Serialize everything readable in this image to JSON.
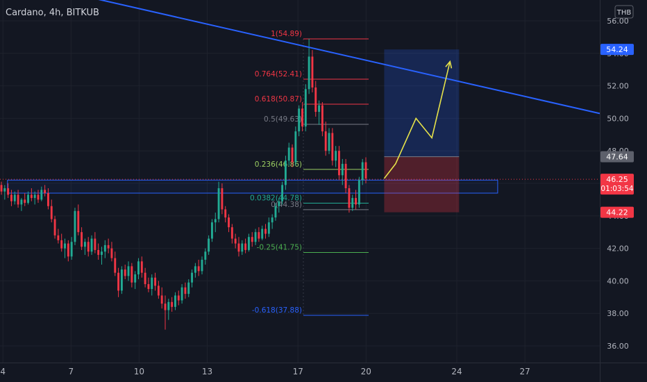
{
  "header": {
    "symbol_line": "Cardano, 4h, BITKUB"
  },
  "currency_badge": "THB",
  "chart_data": {
    "type": "candlestick",
    "title": "Cardano, 4h, BITKUB",
    "ylim": [
      35.2,
      57.0
    ],
    "y_ticks": [
      "56.00",
      "54.00",
      "52.00",
      "50.00",
      "48.00",
      "46.00",
      "44.00",
      "42.00",
      "40.00",
      "38.00",
      "36.00"
    ],
    "x_ticks": [
      {
        "label": "4",
        "day": 4
      },
      {
        "label": "7",
        "day": 7
      },
      {
        "label": "10",
        "day": 10
      },
      {
        "label": "13",
        "day": 13
      },
      {
        "label": "17",
        "day": 17
      },
      {
        "label": "20",
        "day": 20
      },
      {
        "label": "24",
        "day": 24
      },
      {
        "label": "27",
        "day": 27
      }
    ],
    "day_range": [
      3.87,
      30.3
    ],
    "candles": [
      [
        45.9,
        46.1,
        45.3,
        45.5
      ],
      [
        45.5,
        45.9,
        45.0,
        45.7
      ],
      [
        45.7,
        46.0,
        45.1,
        45.3
      ],
      [
        45.3,
        45.6,
        44.6,
        44.9
      ],
      [
        44.9,
        45.5,
        44.7,
        45.3
      ],
      [
        45.3,
        45.6,
        44.5,
        44.7
      ],
      [
        44.7,
        45.1,
        44.3,
        45.0
      ],
      [
        45.0,
        45.4,
        44.6,
        44.8
      ],
      [
        44.8,
        45.5,
        44.7,
        45.3
      ],
      [
        45.3,
        45.7,
        44.9,
        45.1
      ],
      [
        45.1,
        45.5,
        44.7,
        45.3
      ],
      [
        45.3,
        45.6,
        44.8,
        45.0
      ],
      [
        45.0,
        45.8,
        44.9,
        45.6
      ],
      [
        45.6,
        45.9,
        45.2,
        45.4
      ],
      [
        45.4,
        45.7,
        44.4,
        44.6
      ],
      [
        44.6,
        45.0,
        43.6,
        43.8
      ],
      [
        43.8,
        44.0,
        42.6,
        42.8
      ],
      [
        42.8,
        43.2,
        42.3,
        42.5
      ],
      [
        42.5,
        42.9,
        41.8,
        42.0
      ],
      [
        42.0,
        42.6,
        41.4,
        42.3
      ],
      [
        42.3,
        42.5,
        41.2,
        41.5
      ],
      [
        41.5,
        42.7,
        41.3,
        42.4
      ],
      [
        42.4,
        44.5,
        42.2,
        44.3
      ],
      [
        44.3,
        44.7,
        42.8,
        43.0
      ],
      [
        43.0,
        43.3,
        41.9,
        42.1
      ],
      [
        42.1,
        42.6,
        41.6,
        42.4
      ],
      [
        42.4,
        42.7,
        41.5,
        41.8
      ],
      [
        41.8,
        42.8,
        41.6,
        42.6
      ],
      [
        42.6,
        43.0,
        41.7,
        41.9
      ],
      [
        41.9,
        42.3,
        41.3,
        41.6
      ],
      [
        41.6,
        42.1,
        41.0,
        41.8
      ],
      [
        41.8,
        42.5,
        41.4,
        42.2
      ],
      [
        42.2,
        42.6,
        41.7,
        42.0
      ],
      [
        42.0,
        42.4,
        41.2,
        41.4
      ],
      [
        41.4,
        41.8,
        40.3,
        40.5
      ],
      [
        40.5,
        40.8,
        39.0,
        39.4
      ],
      [
        39.4,
        40.9,
        39.2,
        40.7
      ],
      [
        40.7,
        41.0,
        40.1,
        40.3
      ],
      [
        40.3,
        41.2,
        40.0,
        40.9
      ],
      [
        40.9,
        41.1,
        39.6,
        39.9
      ],
      [
        39.9,
        40.6,
        39.5,
        40.4
      ],
      [
        40.4,
        41.4,
        40.1,
        41.2
      ],
      [
        41.2,
        41.5,
        40.2,
        40.5
      ],
      [
        40.5,
        40.8,
        39.6,
        39.8
      ],
      [
        39.8,
        40.2,
        39.3,
        39.5
      ],
      [
        39.5,
        40.4,
        39.1,
        40.2
      ],
      [
        40.2,
        40.5,
        39.4,
        39.7
      ],
      [
        39.7,
        40.0,
        38.9,
        39.1
      ],
      [
        39.1,
        39.6,
        38.3,
        38.6
      ],
      [
        38.6,
        39.1,
        37.0,
        38.2
      ],
      [
        38.2,
        38.9,
        37.6,
        38.7
      ],
      [
        38.7,
        39.0,
        38.1,
        38.4
      ],
      [
        38.4,
        39.3,
        38.2,
        39.1
      ],
      [
        39.1,
        39.4,
        38.5,
        38.8
      ],
      [
        38.8,
        39.8,
        38.6,
        39.6
      ],
      [
        39.6,
        39.9,
        38.9,
        39.2
      ],
      [
        39.2,
        40.1,
        39.0,
        39.9
      ],
      [
        39.9,
        40.7,
        39.6,
        40.5
      ],
      [
        40.5,
        41.1,
        40.2,
        40.9
      ],
      [
        40.9,
        41.3,
        40.3,
        40.6
      ],
      [
        40.6,
        41.5,
        40.4,
        41.3
      ],
      [
        41.3,
        42.0,
        41.0,
        41.8
      ],
      [
        41.8,
        42.8,
        41.6,
        42.6
      ],
      [
        42.6,
        43.8,
        42.4,
        43.6
      ],
      [
        43.6,
        44.2,
        43.0,
        43.8
      ],
      [
        43.8,
        46.1,
        43.6,
        45.7
      ],
      [
        45.7,
        46.0,
        44.1,
        44.4
      ],
      [
        44.4,
        44.6,
        43.6,
        43.9
      ],
      [
        43.9,
        44.1,
        43.0,
        43.3
      ],
      [
        43.3,
        43.5,
        42.3,
        42.6
      ],
      [
        42.6,
        42.9,
        42.0,
        42.3
      ],
      [
        42.3,
        42.7,
        41.5,
        41.8
      ],
      [
        41.8,
        42.5,
        41.6,
        42.3
      ],
      [
        42.3,
        42.6,
        41.7,
        41.9
      ],
      [
        41.9,
        42.9,
        41.8,
        42.7
      ],
      [
        42.7,
        43.0,
        42.1,
        42.4
      ],
      [
        42.4,
        43.2,
        42.2,
        43.0
      ],
      [
        43.0,
        43.3,
        42.4,
        42.6
      ],
      [
        42.6,
        43.4,
        42.5,
        43.2
      ],
      [
        43.2,
        43.5,
        42.6,
        42.9
      ],
      [
        42.9,
        43.9,
        42.7,
        43.6
      ],
      [
        43.6,
        44.1,
        43.2,
        43.9
      ],
      [
        43.9,
        44.8,
        43.7,
        44.6
      ],
      [
        44.6,
        45.1,
        44.2,
        44.9
      ],
      [
        44.9,
        46.1,
        44.7,
        45.9
      ],
      [
        45.9,
        47.7,
        45.6,
        47.4
      ],
      [
        47.4,
        48.5,
        47.1,
        48.2
      ],
      [
        48.2,
        48.4,
        47.0,
        47.3
      ],
      [
        47.3,
        49.5,
        47.1,
        49.2
      ],
      [
        49.2,
        50.8,
        48.9,
        50.6
      ],
      [
        50.6,
        51.0,
        49.2,
        49.5
      ],
      [
        49.5,
        52.1,
        49.2,
        51.8
      ],
      [
        51.8,
        54.9,
        51.5,
        53.8
      ],
      [
        53.8,
        54.2,
        51.6,
        51.9
      ],
      [
        51.9,
        52.3,
        50.1,
        50.4
      ],
      [
        50.4,
        51.1,
        49.6,
        50.8
      ],
      [
        50.8,
        51.0,
        48.9,
        49.2
      ],
      [
        49.2,
        49.8,
        47.7,
        48.0
      ],
      [
        48.0,
        49.4,
        47.8,
        49.1
      ],
      [
        49.1,
        49.4,
        47.1,
        47.4
      ],
      [
        47.4,
        48.3,
        47.0,
        48.0
      ],
      [
        48.0,
        48.3,
        46.2,
        46.5
      ],
      [
        46.5,
        47.5,
        45.9,
        47.2
      ],
      [
        47.2,
        47.5,
        45.4,
        45.7
      ],
      [
        45.7,
        45.9,
        44.2,
        44.5
      ],
      [
        44.5,
        45.3,
        44.3,
        45.1
      ],
      [
        45.1,
        45.6,
        44.4,
        44.7
      ],
      [
        44.7,
        46.4,
        44.5,
        46.2
      ],
      [
        46.2,
        47.5,
        45.9,
        47.3
      ],
      [
        47.3,
        47.6,
        46.0,
        46.3
      ]
    ],
    "fib_levels": [
      {
        "label": "1(54.89)",
        "price": 54.89,
        "color": "#f23645"
      },
      {
        "label": "0.764(52.41)",
        "price": 52.41,
        "color": "#f23645"
      },
      {
        "label": "0.618(50.87)",
        "price": 50.87,
        "color": "#f23645"
      },
      {
        "label": "0.5(49.63)",
        "price": 49.63,
        "color": "#787b86"
      },
      {
        "label": "0.236(46.86)",
        "price": 46.86,
        "color": "#9ccf62"
      },
      {
        "label": "0.0382(44.78)",
        "price": 44.78,
        "color": "#22ab94"
      },
      {
        "label": "0(44.38)",
        "price": 44.38,
        "color": "#787b86"
      },
      {
        "label": "-0.25(41.75)",
        "price": 41.75,
        "color": "#4caf50"
      },
      {
        "label": "-0.618(37.88)",
        "price": 37.88,
        "color": "#2962ff"
      }
    ],
    "trendline": {
      "from": {
        "day": 3.87,
        "price": 58.7
      },
      "to": {
        "day": 30.3,
        "price": 50.3
      },
      "color": "#2962ff"
    },
    "zone_rect": {
      "day_from": 4.2,
      "day_to": 25.8,
      "price_top": 46.2,
      "price_bottom": 45.4
    },
    "position": {
      "day_from": 20.8,
      "day_to": 24.1,
      "target": 54.24,
      "entry": 47.64,
      "stop": 44.22
    },
    "projection": [
      {
        "day": 20.8,
        "price": 46.3
      },
      {
        "day": 21.3,
        "price": 47.2
      },
      {
        "day": 22.2,
        "price": 50.0
      },
      {
        "day": 22.9,
        "price": 48.8
      },
      {
        "day": 23.7,
        "price": 53.5
      }
    ],
    "price_labels": {
      "target": {
        "text": "54.24",
        "price": 54.24,
        "color": "#2962ff"
      },
      "entry": {
        "text": "47.64",
        "price": 47.64,
        "color": "#5d606b"
      },
      "current": {
        "text": "46.25",
        "price": 46.25,
        "color": "#f23645",
        "countdown": "01:03:54"
      },
      "stop": {
        "text": "44.22",
        "price": 44.22,
        "color": "#f23645"
      }
    },
    "colors": {
      "up": "#22ab94",
      "down": "#f23645",
      "background": "#131722",
      "axis_text": "#b2b5be"
    }
  }
}
